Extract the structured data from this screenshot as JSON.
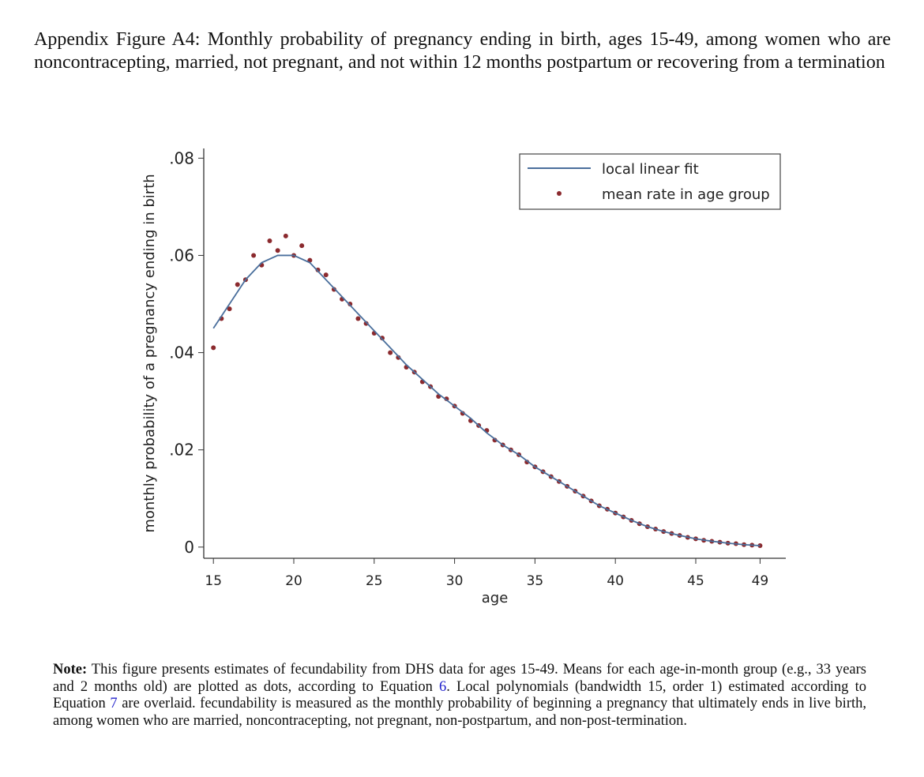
{
  "caption": "Appendix Figure A4: Monthly probability of pregnancy ending in birth, ages 15-49, among women who are noncontracepting, married, not pregnant, and not within 12 months postpartum or recovering from a termination",
  "chart_data": {
    "type": "scatter",
    "xlabel": "age",
    "ylabel": "monthly probability of a pregnancy ending in birth",
    "xlim": [
      14.4,
      50.6
    ],
    "ylim": [
      -0.0023,
      0.082
    ],
    "xticks": [
      15,
      20,
      25,
      30,
      35,
      40,
      45,
      49
    ],
    "yticks": [
      0,
      {
        "value": 0.02,
        "label": ".02"
      },
      {
        "value": 0.04,
        "label": ".04"
      },
      {
        "value": 0.06,
        "label": ".06"
      },
      {
        "value": 0.08,
        "label": ".08"
      }
    ],
    "legend": "upper right",
    "series": [
      {
        "name": "local linear fit",
        "mode": "line",
        "color": "#4a6f9c",
        "x": [
          15,
          16,
          17,
          18,
          19,
          20,
          21,
          22,
          23,
          24,
          25,
          26,
          27,
          28,
          29,
          30,
          31,
          32,
          33,
          34,
          35,
          36,
          37,
          38,
          39,
          40,
          41,
          42,
          43,
          44,
          45,
          46,
          47,
          48,
          49
        ],
        "values": [
          0.045,
          0.05,
          0.055,
          0.0585,
          0.06,
          0.06,
          0.0585,
          0.055,
          0.0515,
          0.048,
          0.0445,
          0.041,
          0.0375,
          0.0345,
          0.0315,
          0.029,
          0.0265,
          0.0235,
          0.021,
          0.019,
          0.0165,
          0.0145,
          0.0125,
          0.0105,
          0.0085,
          0.007,
          0.0055,
          0.0042,
          0.0032,
          0.0024,
          0.0017,
          0.0012,
          0.0008,
          0.0005,
          0.0003
        ]
      },
      {
        "name": "mean rate in age group",
        "mode": "markers",
        "color": "#8b2a2e",
        "x": [
          15,
          15.5,
          16,
          16.5,
          17,
          17.5,
          18,
          18.5,
          19,
          19.5,
          20,
          20.5,
          21,
          21.5,
          22,
          22.5,
          23,
          23.5,
          24,
          24.5,
          25,
          25.5,
          26,
          26.5,
          27,
          27.5,
          28,
          28.5,
          29,
          29.5,
          30,
          30.5,
          31,
          31.5,
          32,
          32.5,
          33,
          33.5,
          34,
          34.5,
          35,
          35.5,
          36,
          36.5,
          37,
          37.5,
          38,
          38.5,
          39,
          39.5,
          40,
          40.5,
          41,
          41.5,
          42,
          42.5,
          43,
          43.5,
          44,
          44.5,
          45,
          45.5,
          46,
          46.5,
          47,
          47.5,
          48,
          48.5,
          49
        ],
        "values": [
          0.041,
          0.047,
          0.049,
          0.054,
          0.055,
          0.06,
          0.058,
          0.063,
          0.061,
          0.064,
          0.06,
          0.062,
          0.059,
          0.057,
          0.056,
          0.053,
          0.051,
          0.05,
          0.047,
          0.046,
          0.044,
          0.043,
          0.04,
          0.039,
          0.037,
          0.036,
          0.034,
          0.033,
          0.031,
          0.0305,
          0.029,
          0.0275,
          0.026,
          0.025,
          0.024,
          0.022,
          0.021,
          0.02,
          0.019,
          0.0175,
          0.0165,
          0.0155,
          0.0145,
          0.0135,
          0.0125,
          0.0115,
          0.0105,
          0.0095,
          0.0085,
          0.0078,
          0.007,
          0.0062,
          0.0055,
          0.0048,
          0.0042,
          0.0037,
          0.0032,
          0.0028,
          0.0024,
          0.002,
          0.0017,
          0.0014,
          0.0012,
          0.001,
          0.0008,
          0.0007,
          0.0005,
          0.0004,
          0.0003
        ]
      }
    ]
  },
  "note": {
    "label": "Note:",
    "text1": " This figure presents estimates of fecundability from DHS data for ages 15-49. Means for each age-in-month group (e.g., 33 years and 2 months old) are plotted as dots, according to Equation ",
    "ref1": "6",
    "text2": ". Local polynomials (bandwidth 15, order 1) estimated according to Equation ",
    "ref2": "7",
    "text3": " are overlaid. fecundability is measured as the monthly probability of beginning a pregnancy that ultimately ends in live birth, among women who are married, noncontracepting, not pregnant, non-postpartum, and non-post-termination."
  }
}
